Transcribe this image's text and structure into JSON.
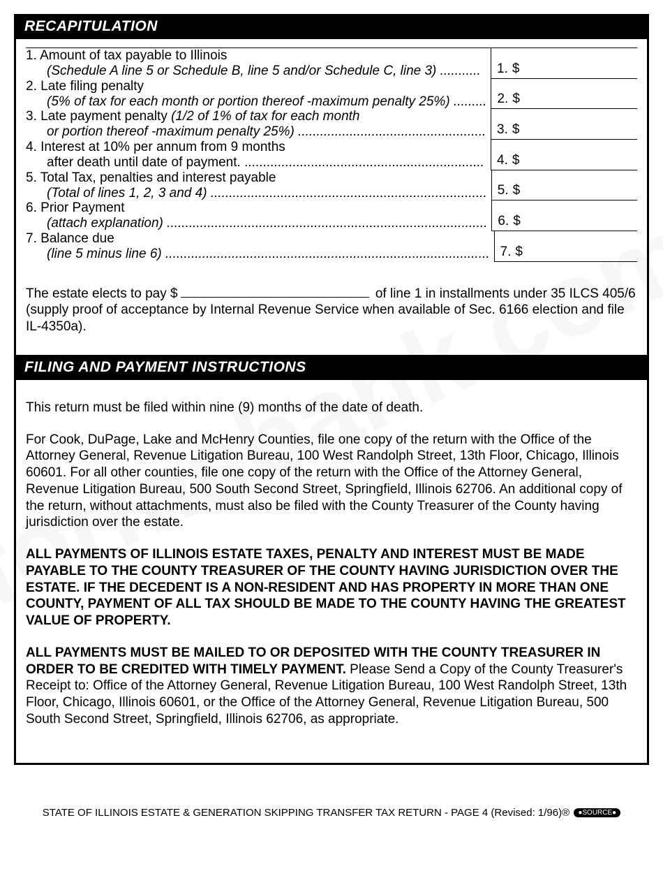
{
  "recap": {
    "header": "RECAPITULATION",
    "lines": [
      {
        "num": "1.",
        "text": "Amount of tax payable to Illinois",
        "sub": "(Schedule A line 5 or Schedule B, line 5 and/or Schedule C, line 3) ...........",
        "boxnum": "1.",
        "currency": "$"
      },
      {
        "num": "2.",
        "text": "Late filing penalty",
        "sub": "(5% of tax for each month or portion thereof -maximum penalty 25%) .........",
        "boxnum": "2.",
        "currency": "$"
      },
      {
        "num": "3.",
        "text": "Late payment penalty",
        "inline_ital": " (1/2 of 1% of tax for each month",
        "sub": "or portion thereof -maximum penalty 25%) ...................................................",
        "boxnum": "3.",
        "currency": "$"
      },
      {
        "num": "4.",
        "text": "Interest at 10% per annum from 9 months",
        "sub_plain": "after death until date of payment. .................................................................",
        "boxnum": "4.",
        "currency": "$"
      },
      {
        "num": "5.",
        "text": "Total Tax, penalties and interest payable",
        "sub": "(Total of lines 1, 2, 3 and 4) ...........................................................................",
        "boxnum": "5.",
        "currency": "$"
      },
      {
        "num": "6.",
        "text": "Prior Payment",
        "sub": "(attach explanation) .......................................................................................",
        "boxnum": "6.",
        "currency": "$"
      },
      {
        "num": "7.",
        "text": "Balance due",
        "sub": "(line 5 minus line 6) ........................................................................................",
        "boxnum": "7.",
        "currency": "$"
      }
    ]
  },
  "installment": {
    "prefix": "The estate elects to pay $",
    "suffix": " of line 1 in installments under 35 ILCS 405/6 (supply proof of acceptance by Internal Revenue Service when available of Sec. 6166 election and file IL-4350a)."
  },
  "filing": {
    "header": "FILING AND PAYMENT INSTRUCTIONS",
    "p1": "This return must be filed within nine (9) months of the date of death.",
    "p2": "For Cook, DuPage, Lake and McHenry Counties, file one copy of the return with the Office of the Attorney General, Revenue Litigation Bureau, 100 West Randolph Street, 13th Floor, Chicago, Illinois 60601.  For all other counties, file one copy of the return with the Office of the Attorney General, Revenue Litigation Bureau, 500 South Second Street, Springfield, Illinois 62706.  An additional copy of the return, without attachments, must also be filed with the County Treasurer of the County having jurisdiction over the estate.",
    "p3": "ALL PAYMENTS OF ILLINOIS ESTATE TAXES, PENALTY AND INTEREST MUST BE MADE PAYABLE TO THE COUNTY TREASURER OF THE COUNTY HAVING JURISDICTION OVER THE ESTATE.  IF THE DECEDENT IS A NON-RESIDENT AND HAS PROPERTY IN MORE THAN ONE COUNTY, PAYMENT OF ALL TAX SHOULD BE MADE TO THE COUNTY HAVING THE GREATEST VALUE OF PROPERTY.",
    "p4a": "ALL PAYMENTS MUST BE MAILED TO OR DEPOSITED WITH THE COUNTY TREASURER IN ORDER TO BE CREDITED WITH TIMELY PAYMENT.",
    "p4b": "  Please Send a Copy of the County Treasurer's Receipt to:  Office of the Attorney General, Revenue Litigation Bureau, 100 West Randolph Street, 13th Floor, Chicago, Illinois 60601, or the Office of the Attorney General, Revenue Litigation Bureau, 500 South Second Street, Springfield, Illinois 62706, as appropriate."
  },
  "footer": {
    "text": "STATE OF ILLINOIS ESTATE & GENERATION SKIPPING TRANSFER TAX RETURN - PAGE 4  (Revised: 1/96)",
    "reg": "®",
    "logo": "●SOURCE●"
  },
  "watermark": "formsbank.com"
}
